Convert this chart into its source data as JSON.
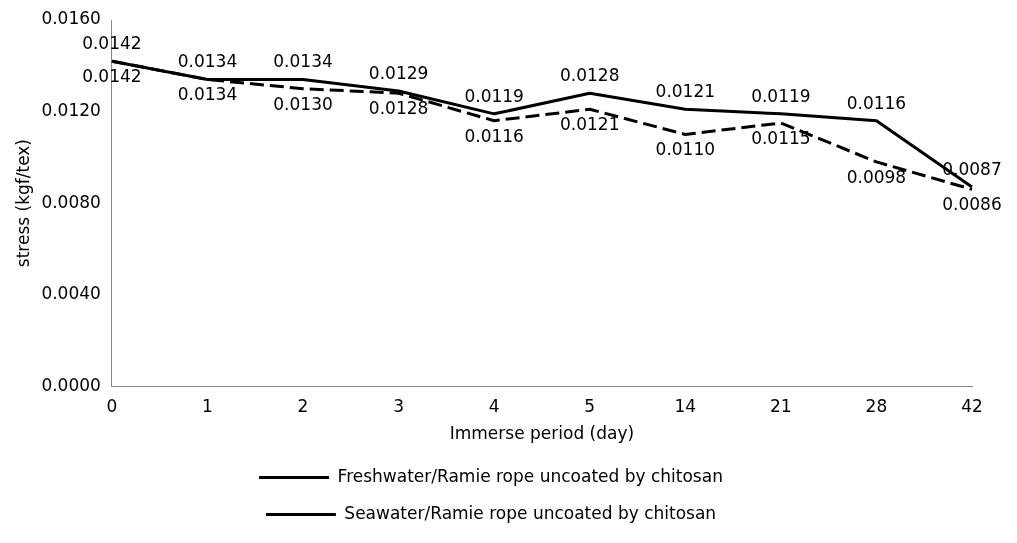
{
  "chart_data": {
    "type": "line",
    "xlabel": "Immerse period (day)",
    "ylabel": "stress (kgf/tex)",
    "categories": [
      "0",
      "1",
      "2",
      "3",
      "4",
      "5",
      "14",
      "21",
      "28",
      "42"
    ],
    "series": [
      {
        "name": "Freshwater/Ramie rope uncoated by chitosan",
        "color": "#000000",
        "line_style": "dashed",
        "values": [
          0.0142,
          0.0134,
          0.013,
          0.0128,
          0.0116,
          0.0121,
          0.011,
          0.0115,
          0.0098,
          0.0086
        ],
        "value_labels": [
          "0.0142",
          "0.0134",
          "0.0130",
          "0.0128",
          "0.0116",
          "0.0121",
          "0.0110",
          "0.0115",
          "0.0098",
          "0.0086"
        ]
      },
      {
        "name": "Seawater/Ramie rope uncoated by chitosan",
        "color": "#000000",
        "line_style": "solid",
        "values": [
          0.0142,
          0.0134,
          0.0134,
          0.0129,
          0.0119,
          0.0128,
          0.0121,
          0.0119,
          0.0116,
          0.0087
        ],
        "value_labels": [
          "0.0142",
          "0.0134",
          "0.0134",
          "0.0129",
          "0.0119",
          "0.0128",
          "0.0121",
          "0.0119",
          "0.0116",
          "0.0087"
        ]
      }
    ],
    "ylim": [
      0,
      0.016
    ],
    "yticks": [
      {
        "value": 0,
        "label": "0.0000"
      },
      {
        "value": 0.004,
        "label": "0.0040"
      },
      {
        "value": 0.008,
        "label": "0.0080"
      },
      {
        "value": 0.012,
        "label": "0.0120"
      },
      {
        "value": 0.016,
        "label": "0.0160"
      }
    ],
    "grid": false,
    "legend": "bottom",
    "marker": "none"
  }
}
